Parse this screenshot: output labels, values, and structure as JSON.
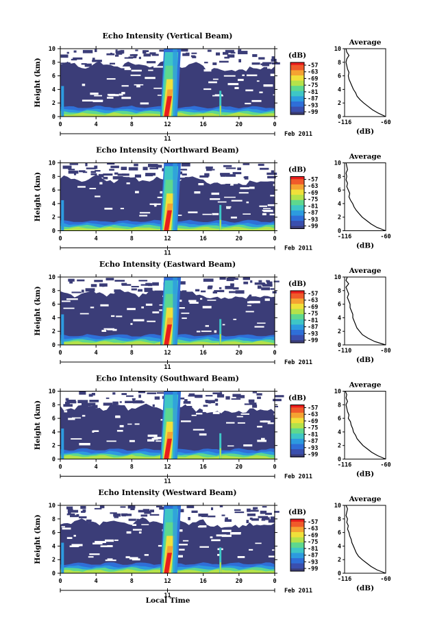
{
  "figure": {
    "x_axis_title": "Local Time",
    "date_label": "Feb 2011",
    "day_label": "11",
    "y_axis_label": "Height (km)",
    "colorbar_unit": "(dB)",
    "avg_title": "Average",
    "avg_xlabel": "(dB)"
  },
  "colors": {
    "background_no_echo": "#ffffff",
    "weak_echo": "#3b3d78",
    "colormap": [
      "#3b3d78",
      "#3a4fae",
      "#2f6fd8",
      "#2d9bdf",
      "#3ec6c6",
      "#5ed88e",
      "#b4e24a",
      "#f0e03a",
      "#f5a332",
      "#f05a2a",
      "#e81d1d"
    ]
  },
  "chart_data": [
    {
      "type": "heatmap",
      "title": "Echo Intensity (Vertical Beam)",
      "xlabel": "",
      "ylabel": "Height (km)",
      "x_ticks": [
        "0",
        "4",
        "8",
        "12",
        "16",
        "20",
        "0"
      ],
      "y_ticks": [
        "0",
        "2",
        "4",
        "6",
        "8",
        "10"
      ],
      "xlim": [
        0,
        24
      ],
      "ylim": [
        0,
        10
      ],
      "colorbar": {
        "label": "(dB)",
        "ticks": [
          "-57",
          "-63",
          "-69",
          "-75",
          "-81",
          "-87",
          "-93",
          "-99"
        ]
      },
      "average_profile": {
        "title": "Average",
        "xlabel": "(dB)",
        "x_ticks": [
          "-116",
          "-60"
        ],
        "xlim": [
          -116,
          -60
        ],
        "x_db": [
          -60,
          -70,
          -78,
          -84,
          -90,
          -95,
          -99,
          -101,
          -104,
          -106,
          -108,
          -110,
          -111,
          -110,
          -112,
          -113,
          -114,
          -113,
          -110,
          -113,
          -114
        ],
        "height_km": [
          0,
          0.5,
          1,
          1.5,
          2,
          2.5,
          3,
          3.5,
          4,
          4.5,
          5,
          5.5,
          6,
          6.5,
          7,
          7.5,
          8,
          8.5,
          9,
          9.5,
          10
        ]
      }
    },
    {
      "type": "heatmap",
      "title": "Echo Intensity (Northward Beam)",
      "xlabel": "",
      "ylabel": "Height (km)",
      "x_ticks": [
        "0",
        "4",
        "8",
        "12",
        "16",
        "20",
        "0"
      ],
      "y_ticks": [
        "0",
        "2",
        "4",
        "6",
        "8",
        "10"
      ],
      "xlim": [
        0,
        24
      ],
      "ylim": [
        0,
        10
      ],
      "colorbar": {
        "label": "(dB)",
        "ticks": [
          "-57",
          "-63",
          "-69",
          "-75",
          "-81",
          "-87",
          "-93",
          "-99"
        ]
      },
      "average_profile": {
        "title": "Average",
        "xlabel": "(dB)",
        "x_ticks": [
          "-116",
          "-60"
        ],
        "xlim": [
          -116,
          -60
        ],
        "x_db": [
          -60,
          -72,
          -80,
          -86,
          -92,
          -96,
          -100,
          -103,
          -105,
          -108,
          -110,
          -109,
          -111,
          -113,
          -112,
          -114,
          -113,
          -114,
          -112,
          -113,
          -114
        ],
        "height_km": [
          0,
          0.5,
          1,
          1.5,
          2,
          2.5,
          3,
          3.5,
          4,
          4.5,
          5,
          5.5,
          6,
          6.5,
          7,
          7.5,
          8,
          8.5,
          9,
          9.5,
          10
        ]
      }
    },
    {
      "type": "heatmap",
      "title": "Echo Intensity (Eastward Beam)",
      "xlabel": "",
      "ylabel": "Height (km)",
      "x_ticks": [
        "0",
        "4",
        "8",
        "12",
        "16",
        "20",
        "0"
      ],
      "y_ticks": [
        "0",
        "2",
        "4",
        "6",
        "8",
        "10"
      ],
      "xlim": [
        0,
        24
      ],
      "ylim": [
        0,
        10
      ],
      "colorbar": {
        "label": "(dB)",
        "ticks": [
          "-57",
          "-63",
          "-69",
          "-75",
          "-81",
          "-87",
          "-93",
          "-99"
        ]
      },
      "average_profile": {
        "title": "Average",
        "xlabel": "(dB)",
        "x_ticks": [
          "-110",
          "-80"
        ],
        "xlim": [
          -110,
          -80
        ],
        "x_db": [
          -80,
          -88,
          -93,
          -97,
          -99,
          -101,
          -102,
          -103,
          -104,
          -104,
          -105,
          -106,
          -106,
          -107,
          -108,
          -107,
          -108,
          -109,
          -107,
          -109,
          -108
        ],
        "height_km": [
          0,
          0.5,
          1,
          1.5,
          2,
          2.5,
          3,
          3.5,
          4,
          4.5,
          5,
          5.5,
          6,
          6.5,
          7,
          7.5,
          8,
          8.5,
          9,
          9.5,
          10
        ]
      }
    },
    {
      "type": "heatmap",
      "title": "Echo Intensity (Southward Beam)",
      "xlabel": "",
      "ylabel": "Height (km)",
      "x_ticks": [
        "0",
        "4",
        "8",
        "12",
        "16",
        "20",
        "0"
      ],
      "y_ticks": [
        "0",
        "2",
        "4",
        "6",
        "8",
        "10"
      ],
      "xlim": [
        0,
        24
      ],
      "ylim": [
        0,
        10
      ],
      "colorbar": {
        "label": "(dB)",
        "ticks": [
          "-57",
          "-63",
          "-69",
          "-75",
          "-81",
          "-87",
          "-93",
          "-99"
        ]
      },
      "average_profile": {
        "title": "Average",
        "xlabel": "(dB)",
        "x_ticks": [
          "-116",
          "-60"
        ],
        "xlim": [
          -116,
          -60
        ],
        "x_db": [
          -60,
          -71,
          -79,
          -85,
          -91,
          -95,
          -99,
          -101,
          -104,
          -105,
          -107,
          -108,
          -111,
          -110,
          -112,
          -113,
          -114,
          -112,
          -114,
          -113,
          -115
        ],
        "height_km": [
          0,
          0.5,
          1,
          1.5,
          2,
          2.5,
          3,
          3.5,
          4,
          4.5,
          5,
          5.5,
          6,
          6.5,
          7,
          7.5,
          8,
          8.5,
          9,
          9.5,
          10
        ]
      }
    },
    {
      "type": "heatmap",
      "title": "Echo Intensity (Westward Beam)",
      "xlabel": "Local Time",
      "ylabel": "Height (km)",
      "x_ticks": [
        "0",
        "4",
        "8",
        "12",
        "16",
        "20",
        "0"
      ],
      "y_ticks": [
        "0",
        "2",
        "4",
        "6",
        "8",
        "10"
      ],
      "xlim": [
        0,
        24
      ],
      "ylim": [
        0,
        10
      ],
      "colorbar": {
        "label": "(dB)",
        "ticks": [
          "-57",
          "-63",
          "-69",
          "-75",
          "-81",
          "-87",
          "-93",
          "-99"
        ]
      },
      "average_profile": {
        "title": "Average",
        "xlabel": "(dB)",
        "x_ticks": [
          "-116",
          "-60"
        ],
        "xlim": [
          -116,
          -60
        ],
        "x_db": [
          -60,
          -72,
          -80,
          -86,
          -92,
          -97,
          -100,
          -102,
          -104,
          -106,
          -107,
          -109,
          -110,
          -112,
          -111,
          -113,
          -112,
          -114,
          -113,
          -112,
          -114
        ],
        "height_km": [
          0,
          0.5,
          1,
          1.5,
          2,
          2.5,
          3,
          3.5,
          4,
          4.5,
          5,
          5.5,
          6,
          6.5,
          7,
          7.5,
          8,
          8.5,
          9,
          9.5,
          10
        ]
      }
    }
  ]
}
